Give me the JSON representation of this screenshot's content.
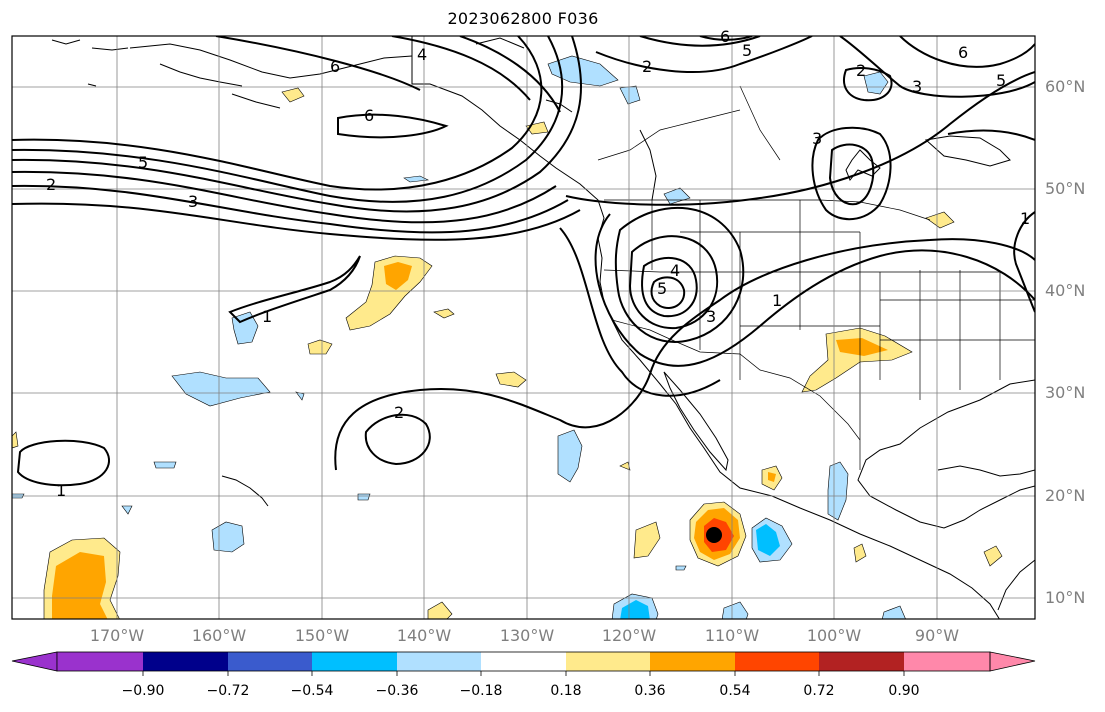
{
  "title": "2023062800 F036",
  "latitude_labels": [
    "60°N",
    "50°N",
    "40°N",
    "30°N",
    "20°N",
    "10°N"
  ],
  "longitude_labels": [
    "170°W",
    "160°W",
    "150°W",
    "140°W",
    "130°W",
    "120°W",
    "110°W",
    "100°W",
    "90°W"
  ],
  "contour_labels": [
    "6",
    "4",
    "6",
    "5",
    "2",
    "6",
    "5",
    "3",
    "2",
    "5",
    "2",
    "3",
    "6",
    "1",
    "3",
    "4",
    "5",
    "3",
    "1",
    "1",
    "2",
    "1"
  ],
  "colorbar": {
    "tick_labels": [
      "−0.90",
      "−0.72",
      "−0.54",
      "−0.36",
      "−0.18",
      "0.18",
      "0.36",
      "0.54",
      "0.72",
      "0.90"
    ],
    "colors": [
      "#9a32cd",
      "#00008b",
      "#3a5bcd",
      "#00bfff",
      "#b0e0ff",
      "#ffffff",
      "#ffea8c",
      "#ffa500",
      "#ff4500",
      "#b22222",
      "#ff88aa"
    ]
  }
}
